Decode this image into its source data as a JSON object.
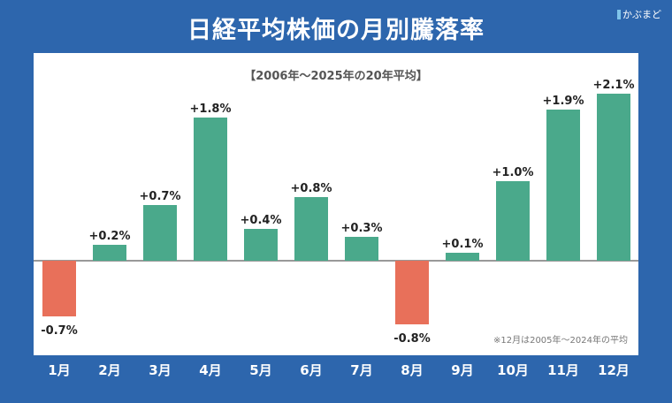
{
  "title": "日経平均株価の月別騰落率",
  "logo": "かぶまど",
  "colors": {
    "background": "#2d66ad",
    "positive": "#4aa98b",
    "negative": "#e8705a"
  },
  "chart_data": {
    "type": "bar",
    "subtitle": "【2006年～2025年の20年平均】",
    "note": "※12月は2005年～2024年の平均",
    "categories": [
      "1月",
      "2月",
      "3月",
      "4月",
      "5月",
      "6月",
      "7月",
      "8月",
      "9月",
      "10月",
      "11月",
      "12月"
    ],
    "values": [
      -0.7,
      0.2,
      0.7,
      1.8,
      0.4,
      0.8,
      0.3,
      -0.8,
      0.1,
      1.0,
      1.9,
      2.1
    ],
    "labels": [
      "-0.7%",
      "+0.2%",
      "+0.7%",
      "+1.8%",
      "+0.4%",
      "+0.8%",
      "+0.3%",
      "-0.8%",
      "+0.1%",
      "+1.0%",
      "+1.9%",
      "+2.1%"
    ],
    "grid": false
  }
}
